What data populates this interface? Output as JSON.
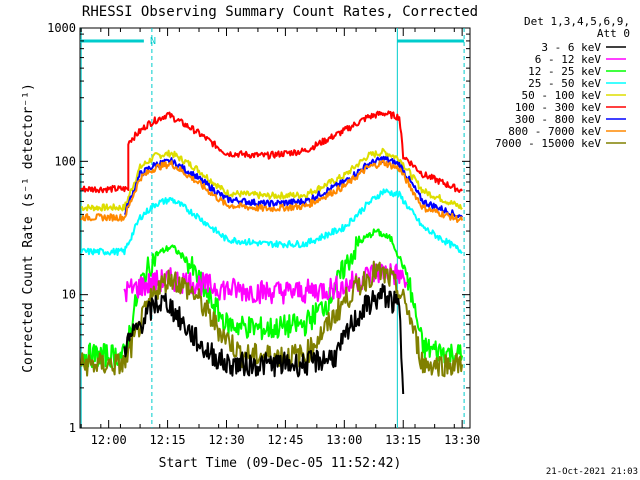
{
  "chart_data": {
    "type": "line",
    "title": "RHESSI Observing Summary Count Rates, Corrected",
    "xlabel": "Start Time (09-Dec-05 11:52:42)",
    "ylabel": "Corrected Count Rate (s⁻¹ detector⁻¹)",
    "y_scale": "log",
    "ylim": [
      1,
      1000
    ],
    "xlim": [
      "11:52:42",
      "13:32:00"
    ],
    "x_ticks": [
      "12:00",
      "12:15",
      "12:30",
      "12:45",
      "13:00",
      "13:15",
      "13:30"
    ],
    "y_ticks": [
      "1",
      "10",
      "100",
      "1000"
    ],
    "legend_title": [
      "Det 1,3,4,5,6,9,",
      "Att 0"
    ],
    "legend_position": "right",
    "timestamp": "21-Oct-2021 21:03",
    "night_label": "N",
    "night_interval": [
      "11:52:42",
      "12:11:00"
    ],
    "day_interval_vlines": [
      "11:53:00",
      "13:13:30"
    ],
    "night_bar_2": [
      "13:13:30",
      "13:30:30"
    ],
    "series": [
      {
        "name": "3 - 6 keV",
        "color": "#000000",
        "x": [
          "12:04",
          "12:08",
          "12:12",
          "12:15",
          "12:19",
          "12:24",
          "12:30",
          "12:40",
          "12:50",
          "12:58",
          "13:02",
          "13:06",
          "13:10",
          "13:14",
          "13:15"
        ],
        "y": [
          4,
          6,
          8.5,
          8.8,
          6,
          4,
          3,
          3,
          3,
          3.5,
          6,
          8.5,
          10,
          8,
          1.8
        ]
      },
      {
        "name": "6 - 12 keV",
        "color": "#ff00ff",
        "x": [
          "12:04",
          "12:10",
          "12:15",
          "12:20",
          "12:30",
          "12:40",
          "12:50",
          "13:00",
          "13:06",
          "13:10",
          "13:14",
          "13:16"
        ],
        "y": [
          10.5,
          12,
          13,
          12.5,
          11,
          10.5,
          10.5,
          11.5,
          14,
          15,
          14,
          12
        ]
      },
      {
        "name": "12 - 25 keV",
        "color": "#00ff00",
        "x": [
          "11:53",
          "12:04",
          "12:08",
          "12:12",
          "12:16",
          "12:20",
          "12:26",
          "12:30",
          "12:40",
          "12:50",
          "12:56",
          "13:00",
          "13:04",
          "13:08",
          "13:12",
          "13:16",
          "13:20",
          "13:30"
        ],
        "y": [
          3.5,
          3.5,
          12,
          20,
          23,
          18,
          9,
          6,
          5.5,
          6,
          9,
          16,
          25,
          30,
          26,
          14,
          4,
          3.5
        ]
      },
      {
        "name": "25 - 50 keV",
        "color": "#00ffff",
        "x": [
          "11:53",
          "12:04",
          "12:08",
          "12:12",
          "12:16",
          "12:22",
          "12:30",
          "12:40",
          "12:50",
          "13:00",
          "13:06",
          "13:10",
          "13:14",
          "13:20",
          "13:30"
        ],
        "y": [
          21,
          21,
          38,
          48,
          52,
          40,
          26,
          24,
          24,
          32,
          48,
          60,
          56,
          32,
          21
        ]
      },
      {
        "name": "50 - 100 keV",
        "color": "#dddd00",
        "x": [
          "11:53",
          "12:04",
          "12:08",
          "12:12",
          "12:16",
          "12:22",
          "12:30",
          "12:40",
          "12:50",
          "13:00",
          "13:06",
          "13:10",
          "13:14",
          "13:20",
          "13:30"
        ],
        "y": [
          45,
          45,
          90,
          110,
          115,
          90,
          58,
          55,
          56,
          78,
          110,
          118,
          105,
          60,
          45
        ]
      },
      {
        "name": "100 - 300 keV",
        "color": "#ff0000",
        "x": [
          "11:53",
          "12:05",
          "12:05",
          "12:10",
          "12:15",
          "12:22",
          "12:30",
          "12:40",
          "12:50",
          "13:00",
          "13:06",
          "13:10",
          "13:14",
          "13:15",
          "13:20",
          "13:30"
        ],
        "y": [
          62,
          62,
          140,
          190,
          225,
          170,
          115,
          110,
          120,
          170,
          215,
          230,
          215,
          110,
          80,
          60
        ]
      },
      {
        "name": "300 - 800 keV",
        "color": "#0000ff",
        "x": [
          "12:04",
          "12:08",
          "12:12",
          "12:16",
          "12:22",
          "12:30",
          "12:40",
          "12:50",
          "13:00",
          "13:06",
          "13:10",
          "13:14",
          "13:20",
          "13:30"
        ],
        "y": [
          40,
          80,
          95,
          100,
          78,
          52,
          48,
          50,
          70,
          95,
          105,
          95,
          50,
          38
        ]
      },
      {
        "name": "800 - 7000 keV",
        "color": "#ff8800",
        "x": [
          "11:53",
          "12:04",
          "12:08",
          "12:12",
          "12:16",
          "12:22",
          "12:30",
          "12:40",
          "12:50",
          "13:00",
          "13:06",
          "13:10",
          "13:14",
          "13:20",
          "13:30"
        ],
        "y": [
          38,
          38,
          75,
          90,
          96,
          72,
          47,
          44,
          46,
          65,
          90,
          98,
          88,
          45,
          36
        ]
      },
      {
        "name": "7000 - 15000 keV",
        "color": "#808000",
        "x": [
          "11:53",
          "12:04",
          "12:08",
          "12:12",
          "12:16",
          "12:22",
          "12:28",
          "12:34",
          "12:44",
          "12:50",
          "12:56",
          "13:00",
          "13:04",
          "13:08",
          "13:12",
          "13:16",
          "13:20",
          "13:30"
        ],
        "y": [
          3,
          3,
          6,
          11,
          13.5,
          10,
          5.5,
          3.5,
          3.5,
          3.5,
          6,
          9,
          12,
          15,
          13,
          8,
          3,
          3
        ]
      }
    ]
  }
}
